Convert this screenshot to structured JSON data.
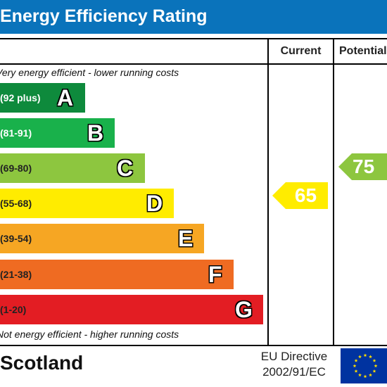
{
  "header": {
    "title": "Energy Efficiency Rating"
  },
  "columns": {
    "current": "Current",
    "potential": "Potential"
  },
  "notes": {
    "top": "Very energy efficient - lower running costs",
    "bottom": "Not energy efficient - higher running costs"
  },
  "footer": {
    "country": "Scotland",
    "directive_line1": "EU Directive",
    "directive_line2": "2002/91/EC"
  },
  "colors": {
    "header": "#0a73bb",
    "A": "#0e8a3c",
    "B": "#19b14b",
    "C": "#8dc63f",
    "D": "#ffec00",
    "E": "#f6a623",
    "F": "#ef6b22",
    "G": "#e31d23",
    "eu_flag": "#0033a0",
    "eu_stars": "#ffde00"
  },
  "chart_data": {
    "type": "bar",
    "title": "Energy Efficiency Rating",
    "categories": [
      "A",
      "B",
      "C",
      "D",
      "E",
      "F",
      "G"
    ],
    "bands": [
      {
        "letter": "A",
        "range": "(92 plus)"
      },
      {
        "letter": "B",
        "range": "(81-91)"
      },
      {
        "letter": "C",
        "range": "(69-80)"
      },
      {
        "letter": "D",
        "range": "(55-68)"
      },
      {
        "letter": "E",
        "range": "(39-54)"
      },
      {
        "letter": "F",
        "range": "(21-38)"
      },
      {
        "letter": "G",
        "range": "(1-20)"
      }
    ],
    "current": {
      "value": 65,
      "band": "D"
    },
    "potential": {
      "value": 75,
      "band": "C"
    }
  }
}
